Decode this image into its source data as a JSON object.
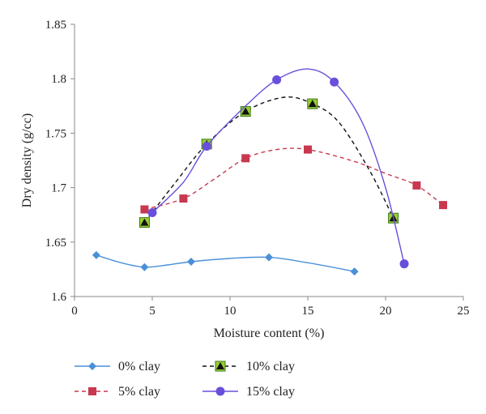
{
  "chart_data": {
    "type": "line",
    "title": "",
    "xlabel": "Moisture content (%)",
    "ylabel": "Dry density (g/cc)",
    "xlim": [
      0,
      25
    ],
    "ylim": [
      1.6,
      1.85
    ],
    "x_ticks": [
      "0",
      "5",
      "10",
      "15",
      "20",
      "25"
    ],
    "y_ticks": [
      "1.6",
      "1.65",
      "1.7",
      "1.75",
      "1.8",
      "1.85"
    ],
    "x_tick_values": [
      0,
      5,
      10,
      15,
      20,
      25
    ],
    "y_tick_values": [
      1.6,
      1.65,
      1.7,
      1.75,
      1.8,
      1.85
    ],
    "grid": false,
    "legend_position": "bottom",
    "series": [
      {
        "name": "0% clay",
        "color": "#4a90d9",
        "marker": "diamond",
        "line": "solid",
        "points": [
          [
            1.4,
            1.638
          ],
          [
            4.5,
            1.627
          ],
          [
            7.5,
            1.632
          ],
          [
            12.5,
            1.636
          ],
          [
            18,
            1.623
          ]
        ],
        "curve": [
          [
            1.4,
            1.638
          ],
          [
            3,
            1.631
          ],
          [
            4.5,
            1.627
          ],
          [
            6,
            1.629
          ],
          [
            7.5,
            1.632
          ],
          [
            10,
            1.635
          ],
          [
            12.5,
            1.636
          ],
          [
            15,
            1.631
          ],
          [
            18,
            1.623
          ]
        ]
      },
      {
        "name": "5% clay",
        "color": "#c8384f",
        "marker": "square",
        "line": "dashed",
        "points": [
          [
            4.5,
            1.68
          ],
          [
            7,
            1.69
          ],
          [
            11,
            1.727
          ],
          [
            15,
            1.735
          ],
          [
            22,
            1.702
          ],
          [
            23.7,
            1.684
          ]
        ],
        "curve": [
          [
            4.5,
            1.68
          ],
          [
            7,
            1.69
          ],
          [
            9,
            1.708
          ],
          [
            11,
            1.727
          ],
          [
            13,
            1.735
          ],
          [
            15,
            1.735
          ],
          [
            18,
            1.724
          ],
          [
            20,
            1.713
          ],
          [
            22,
            1.702
          ],
          [
            23.7,
            1.684
          ]
        ]
      },
      {
        "name": "10% clay",
        "color": "#111111",
        "marker": "triangle",
        "line": "dashed",
        "points": [
          [
            4.5,
            1.668
          ],
          [
            8.5,
            1.74
          ],
          [
            11,
            1.77
          ],
          [
            15.3,
            1.777
          ],
          [
            20.5,
            1.672
          ]
        ],
        "curve": [
          [
            4.5,
            1.668
          ],
          [
            6.5,
            1.705
          ],
          [
            8.5,
            1.74
          ],
          [
            11,
            1.77
          ],
          [
            13.5,
            1.783
          ],
          [
            15.3,
            1.777
          ],
          [
            17,
            1.76
          ],
          [
            19,
            1.715
          ],
          [
            20.5,
            1.672
          ]
        ]
      },
      {
        "name": "15% clay",
        "color": "#6a4fdb",
        "marker": "circle",
        "line": "solid",
        "points": [
          [
            5,
            1.677
          ],
          [
            8.5,
            1.738
          ],
          [
            13,
            1.799
          ],
          [
            16.7,
            1.797
          ],
          [
            21.2,
            1.63
          ]
        ],
        "curve": [
          [
            5,
            1.677
          ],
          [
            7,
            1.705
          ],
          [
            8.5,
            1.738
          ],
          [
            11,
            1.775
          ],
          [
            13,
            1.799
          ],
          [
            15,
            1.809
          ],
          [
            16.7,
            1.797
          ],
          [
            18.5,
            1.76
          ],
          [
            20,
            1.7
          ],
          [
            21.2,
            1.63
          ]
        ]
      }
    ]
  }
}
